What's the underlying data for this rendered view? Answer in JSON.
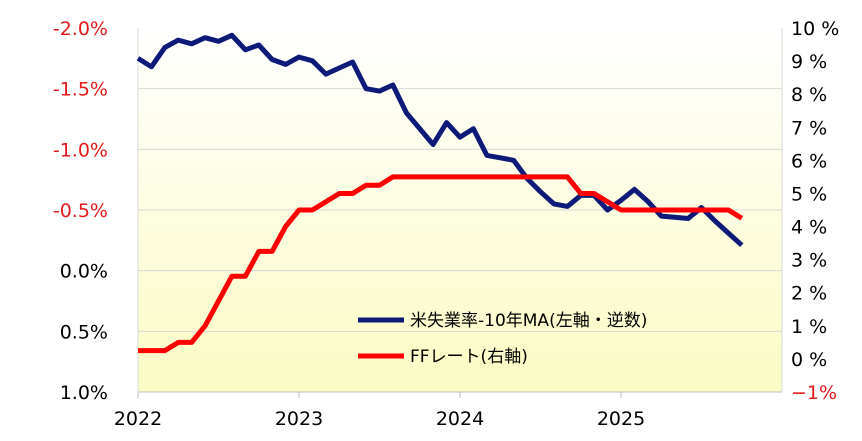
{
  "chart_data": {
    "type": "line",
    "title": "",
    "xlabel": "",
    "x_ticks": [
      "2022",
      "2023",
      "2024",
      "2025"
    ],
    "x_range": [
      2022.0,
      2026.0
    ],
    "left_axis": {
      "ticks": [
        "-2.0%",
        "-1.5%",
        "-1.0%",
        "-0.5%",
        "0.0%",
        "0.5%",
        "1.0%"
      ],
      "tick_values": [
        -2.0,
        -1.5,
        -1.0,
        -0.5,
        0.0,
        0.5,
        1.0
      ],
      "inverted": true,
      "range": [
        -2.0,
        1.0
      ],
      "negative_color": "#e31a1c",
      "positive_color": "#000000"
    },
    "right_axis": {
      "ticks": [
        "10 %",
        "9 %",
        "8 %",
        "7 %",
        "6 %",
        "5 %",
        "4 %",
        "3 %",
        "2 %",
        "1 %",
        "0 %",
        "−1%"
      ],
      "tick_values": [
        10,
        9,
        8,
        7,
        6,
        5,
        4,
        3,
        2,
        1,
        0,
        -1
      ],
      "range": [
        -1,
        10
      ],
      "negative_color": "#e31a1c",
      "positive_color": "#000000"
    },
    "grid": "horizontal",
    "background": "vertical gradient, white at top to pale yellow at bottom",
    "legend_placement": "bottom-right",
    "series": [
      {
        "name": "米失業率-10年MA(左軸・逆数)",
        "axis": "left",
        "color": "#0d1a78",
        "x": [
          2022.0,
          2022.083,
          2022.167,
          2022.25,
          2022.333,
          2022.417,
          2022.5,
          2022.583,
          2022.667,
          2022.75,
          2022.833,
          2022.917,
          2023.0,
          2023.083,
          2023.167,
          2023.25,
          2023.333,
          2023.417,
          2023.5,
          2023.583,
          2023.667,
          2023.75,
          2023.833,
          2023.917,
          2024.0,
          2024.083,
          2024.167,
          2024.25,
          2024.333,
          2024.417,
          2024.5,
          2024.583,
          2024.667,
          2024.75,
          2024.833,
          2024.917,
          2025.0,
          2025.083,
          2025.167,
          2025.25,
          2025.333,
          2025.417,
          2025.5,
          2025.583,
          2025.667,
          2025.75
        ],
        "y": [
          -1.75,
          -1.68,
          -1.84,
          -1.9,
          -1.87,
          -1.92,
          -1.89,
          -1.94,
          -1.82,
          -1.86,
          -1.74,
          -1.7,
          -1.76,
          -1.73,
          -1.62,
          -1.67,
          -1.72,
          -1.5,
          -1.48,
          -1.53,
          -1.3,
          -1.17,
          -1.04,
          -1.22,
          -1.1,
          -1.17,
          -0.95,
          -0.93,
          -0.91,
          -0.76,
          -0.65,
          -0.55,
          -0.53,
          -0.62,
          -0.62,
          -0.5,
          -0.58,
          -0.67,
          -0.57,
          -0.45,
          -0.44,
          -0.43,
          -0.52,
          -0.41,
          -0.31,
          -0.21
        ]
      },
      {
        "name": "FFレート(右軸)",
        "axis": "right",
        "color": "#ff0000",
        "x": [
          2022.0,
          2022.083,
          2022.167,
          2022.25,
          2022.333,
          2022.417,
          2022.5,
          2022.583,
          2022.667,
          2022.75,
          2022.833,
          2022.917,
          2023.0,
          2023.083,
          2023.167,
          2023.25,
          2023.333,
          2023.417,
          2023.5,
          2023.583,
          2023.667,
          2023.75,
          2023.833,
          2023.917,
          2024.0,
          2024.083,
          2024.167,
          2024.25,
          2024.333,
          2024.417,
          2024.5,
          2024.583,
          2024.667,
          2024.75,
          2024.833,
          2024.917,
          2025.0,
          2025.083,
          2025.167,
          2025.25,
          2025.333,
          2025.417,
          2025.5,
          2025.583,
          2025.667,
          2025.75
        ],
        "y": [
          0.25,
          0.25,
          0.25,
          0.5,
          0.5,
          1.0,
          1.75,
          2.5,
          2.5,
          3.25,
          3.25,
          4.0,
          4.5,
          4.5,
          4.75,
          5.0,
          5.0,
          5.25,
          5.25,
          5.5,
          5.5,
          5.5,
          5.5,
          5.5,
          5.5,
          5.5,
          5.5,
          5.5,
          5.5,
          5.5,
          5.5,
          5.5,
          5.5,
          5.0,
          5.0,
          4.75,
          4.5,
          4.5,
          4.5,
          4.5,
          4.5,
          4.5,
          4.5,
          4.5,
          4.5,
          4.25
        ]
      }
    ]
  }
}
